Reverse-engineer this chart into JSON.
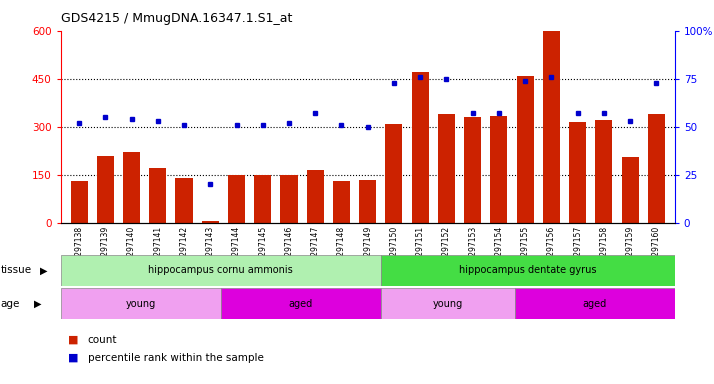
{
  "title": "GDS4215 / MmugDNA.16347.1.S1_at",
  "samples": [
    "GSM297138",
    "GSM297139",
    "GSM297140",
    "GSM297141",
    "GSM297142",
    "GSM297143",
    "GSM297144",
    "GSM297145",
    "GSM297146",
    "GSM297147",
    "GSM297148",
    "GSM297149",
    "GSM297150",
    "GSM297151",
    "GSM297152",
    "GSM297153",
    "GSM297154",
    "GSM297155",
    "GSM297156",
    "GSM297157",
    "GSM297158",
    "GSM297159",
    "GSM297160"
  ],
  "counts": [
    130,
    210,
    220,
    170,
    140,
    5,
    150,
    148,
    148,
    165,
    130,
    135,
    310,
    470,
    340,
    330,
    335,
    460,
    600,
    315,
    320,
    205,
    340
  ],
  "percentile": [
    52,
    55,
    54,
    53,
    51,
    20,
    51,
    51,
    52,
    57,
    51,
    50,
    73,
    76,
    75,
    57,
    57,
    74,
    76,
    57,
    57,
    53,
    73
  ],
  "tissue_groups": [
    {
      "label": "hippocampus cornu ammonis",
      "start": 0,
      "end": 12,
      "color": "#b0f0b0"
    },
    {
      "label": "hippocampus dentate gyrus",
      "start": 12,
      "end": 23,
      "color": "#44dd44"
    }
  ],
  "age_groups": [
    {
      "label": "young",
      "start": 0,
      "end": 6,
      "color": "#f0a0f0"
    },
    {
      "label": "aged",
      "start": 6,
      "end": 12,
      "color": "#dd00dd"
    },
    {
      "label": "young",
      "start": 12,
      "end": 17,
      "color": "#f0a0f0"
    },
    {
      "label": "aged",
      "start": 17,
      "end": 23,
      "color": "#dd00dd"
    }
  ],
  "bar_color": "#CC2200",
  "dot_color": "#0000CC",
  "ylim_left": [
    0,
    600
  ],
  "ylim_right": [
    0,
    100
  ],
  "yticks_left": [
    0,
    150,
    300,
    450,
    600
  ],
  "yticks_right": [
    0,
    25,
    50,
    75,
    100
  ],
  "title_fontsize": 9
}
